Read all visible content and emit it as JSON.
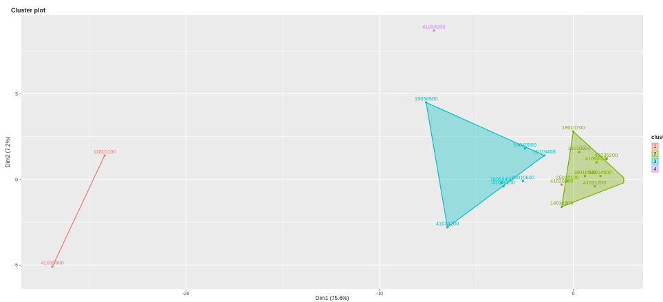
{
  "chart_data": {
    "type": "scatter",
    "title": "Cluster plot",
    "xlabel": "Dim1 (75.6%)",
    "ylabel": "Dim2 (7.2%)",
    "xlim": [
      -28.5,
      3.6
    ],
    "ylim": [
      -6.4,
      9.6
    ],
    "x_ticks": [
      -20,
      -10,
      0
    ],
    "y_ticks": [
      -5,
      0,
      5
    ],
    "grid": true,
    "legend": {
      "title": "clust",
      "position": "right",
      "entries": [
        "1",
        "2",
        "3",
        "4"
      ]
    },
    "colors": {
      "1": "#f8766d",
      "2": "#7cae00",
      "3": "#00bfc4",
      "4": "#c77cff",
      "panel": "#ebebeb",
      "grid": "#ffffff"
    },
    "clusters": [
      {
        "id": "1",
        "points": [
          {
            "label": "11010100",
            "x": -24.2,
            "y": 1.4
          },
          {
            "label": "41033900",
            "x": -26.9,
            "y": -5.1
          }
        ]
      },
      {
        "id": "2",
        "points": [
          {
            "label": "18010700",
            "x": 0.0,
            "y": 2.8
          },
          {
            "label": "18010900",
            "x": 0.3,
            "y": 1.6
          },
          {
            "label": "41035200",
            "x": 1.7,
            "y": 1.2
          },
          {
            "label": "41050000",
            "x": 1.2,
            "y": 1.0
          },
          {
            "label": "18010500",
            "x": 0.6,
            "y": 0.2
          },
          {
            "label": "18014500",
            "x": 1.4,
            "y": 0.2
          },
          {
            "label": "25010100",
            "x": -0.3,
            "y": -0.1
          },
          {
            "label": "41020200",
            "x": -0.6,
            "y": -0.3
          },
          {
            "label": "41031200",
            "x": 1.1,
            "y": -0.4
          },
          {
            "label": "14031900",
            "x": -0.6,
            "y": -1.6
          }
        ],
        "hull": [
          [
            0.0,
            2.8
          ],
          [
            2.6,
            0.1
          ],
          [
            2.6,
            -0.2
          ],
          [
            -0.6,
            -1.6
          ]
        ]
      },
      {
        "id": "3",
        "points": [
          {
            "label": "18050500",
            "x": -7.6,
            "y": 4.5
          },
          {
            "label": "14040000",
            "x": -2.5,
            "y": 1.8
          },
          {
            "label": "11010400",
            "x": -1.5,
            "y": 1.4
          },
          {
            "label": "18010600",
            "x": -2.6,
            "y": -0.1
          },
          {
            "label": "18050400",
            "x": -3.7,
            "y": -0.2
          },
          {
            "label": "41020100",
            "x": -3.6,
            "y": -0.4
          },
          {
            "label": "41034200",
            "x": -6.5,
            "y": -2.8
          }
        ],
        "hull": [
          [
            -7.6,
            4.5
          ],
          [
            -1.5,
            1.4
          ],
          [
            -6.5,
            -2.8
          ]
        ]
      },
      {
        "id": "4",
        "points": [
          {
            "label": "41033200",
            "x": -7.2,
            "y": 8.7
          }
        ]
      }
    ]
  }
}
